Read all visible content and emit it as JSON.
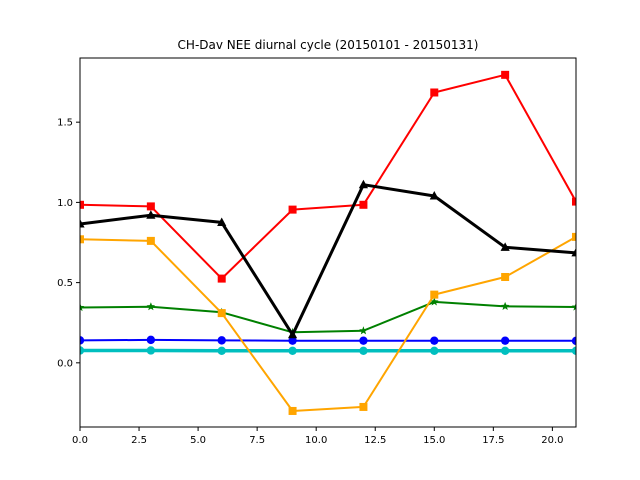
{
  "chart_data": {
    "type": "line",
    "title": "CH-Dav NEE diurnal cycle (20150101 - 20150131)",
    "xlabel": "",
    "ylabel": "",
    "xlim": [
      0,
      21
    ],
    "ylim": [
      -0.4,
      1.9
    ],
    "x_ticks": [
      0.0,
      2.5,
      5.0,
      7.5,
      10.0,
      12.5,
      15.0,
      17.5,
      20.0
    ],
    "x_tick_labels": [
      "0.0",
      "2.5",
      "5.0",
      "7.5",
      "10.0",
      "12.5",
      "15.0",
      "17.5",
      "20.0"
    ],
    "y_ticks": [
      0.0,
      0.5,
      1.0,
      1.5
    ],
    "y_tick_labels": [
      "0.0",
      "0.5",
      "1.0",
      "1.5"
    ],
    "grid": false,
    "x": [
      0,
      3,
      6,
      9,
      12,
      15,
      18,
      21
    ],
    "series": [
      {
        "color": "#0000ff",
        "marker": "circle",
        "values": [
          0.14,
          0.143,
          0.14,
          0.138,
          0.138,
          0.138,
          0.138,
          0.137
        ]
      },
      {
        "color": "#00bfbf",
        "marker": "circle",
        "values": [
          0.077,
          0.077,
          0.075,
          0.075,
          0.075,
          0.075,
          0.075,
          0.075
        ]
      },
      {
        "color": "#008000",
        "marker": "star",
        "values": [
          0.345,
          0.35,
          0.315,
          0.19,
          0.2,
          0.38,
          0.352,
          0.348
        ]
      },
      {
        "color": "#ffa500",
        "marker": "square",
        "values": [
          0.77,
          0.76,
          0.31,
          -0.3,
          -0.275,
          0.425,
          0.535,
          0.785
        ]
      },
      {
        "color": "#ff0000",
        "marker": "square",
        "values": [
          0.985,
          0.975,
          0.525,
          0.955,
          0.985,
          1.685,
          1.795,
          1.005
        ]
      },
      {
        "color": "#000000",
        "marker": "triangle",
        "values": [
          0.865,
          0.92,
          0.875,
          0.175,
          1.11,
          1.04,
          0.72,
          0.685
        ]
      }
    ]
  }
}
